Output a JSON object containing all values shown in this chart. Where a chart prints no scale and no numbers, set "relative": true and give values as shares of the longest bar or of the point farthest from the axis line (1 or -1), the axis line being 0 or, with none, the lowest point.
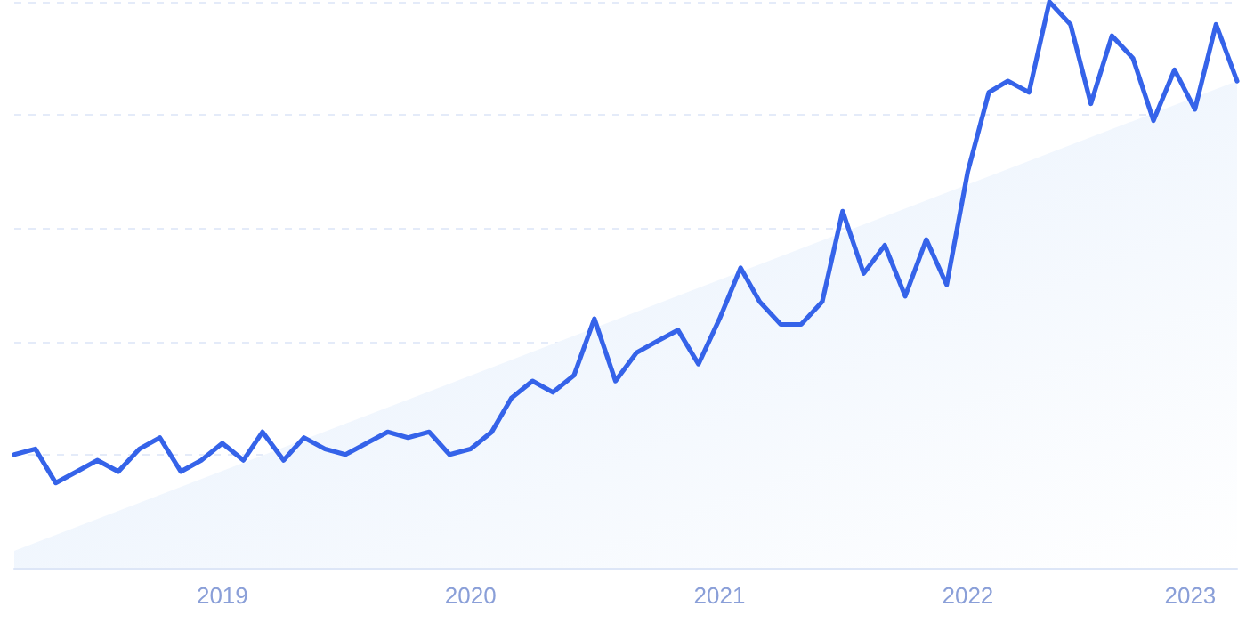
{
  "chart_data": {
    "type": "line",
    "relative": true,
    "grid": "y",
    "marker": "none",
    "line_style": "solid",
    "xlim": [
      "2018-03",
      "2023-02"
    ],
    "xticks": [
      "2019",
      "2020",
      "2021",
      "2022",
      "2023"
    ],
    "x": [
      "2018-03",
      "2018-04",
      "2018-05",
      "2018-06",
      "2018-07",
      "2018-08",
      "2018-09",
      "2018-10",
      "2018-11",
      "2018-12",
      "2019-01",
      "2019-02",
      "2019-03",
      "2019-04",
      "2019-05",
      "2019-06",
      "2019-07",
      "2019-08",
      "2019-09",
      "2019-10",
      "2019-11",
      "2019-12",
      "2020-01",
      "2020-02",
      "2020-03",
      "2020-04",
      "2020-05",
      "2020-06",
      "2020-07",
      "2020-08",
      "2020-09",
      "2020-10",
      "2020-11",
      "2020-12",
      "2021-01",
      "2021-02",
      "2021-03",
      "2021-04",
      "2021-05",
      "2021-06",
      "2021-07",
      "2021-08",
      "2021-09",
      "2021-10",
      "2021-11",
      "2021-12",
      "2022-01",
      "2022-02",
      "2022-03",
      "2022-04",
      "2022-05",
      "2022-06",
      "2022-07",
      "2022-08",
      "2022-09",
      "2022-10",
      "2022-11",
      "2022-12",
      "2023-01",
      "2023-02"
    ],
    "series": [
      {
        "type": "area",
        "color": "#e3eefc",
        "x": [
          "2018-03",
          "2023-02"
        ],
        "values": [
          0.03,
          0.86
        ]
      },
      {
        "color": "#3563e9",
        "values": [
          0.2,
          0.21,
          0.15,
          0.17,
          0.19,
          0.17,
          0.21,
          0.23,
          0.17,
          0.19,
          0.22,
          0.19,
          0.24,
          0.19,
          0.23,
          0.21,
          0.2,
          0.22,
          0.24,
          0.23,
          0.24,
          0.2,
          0.21,
          0.24,
          0.3,
          0.33,
          0.31,
          0.34,
          0.44,
          0.33,
          0.38,
          0.4,
          0.42,
          0.36,
          0.44,
          0.53,
          0.47,
          0.43,
          0.43,
          0.47,
          0.63,
          0.52,
          0.57,
          0.48,
          0.58,
          0.5,
          0.7,
          0.84,
          0.86,
          0.84,
          1,
          0.96,
          0.82,
          0.94,
          0.9,
          0.79,
          0.88,
          0.81,
          0.96,
          0.86
        ]
      }
    ]
  }
}
